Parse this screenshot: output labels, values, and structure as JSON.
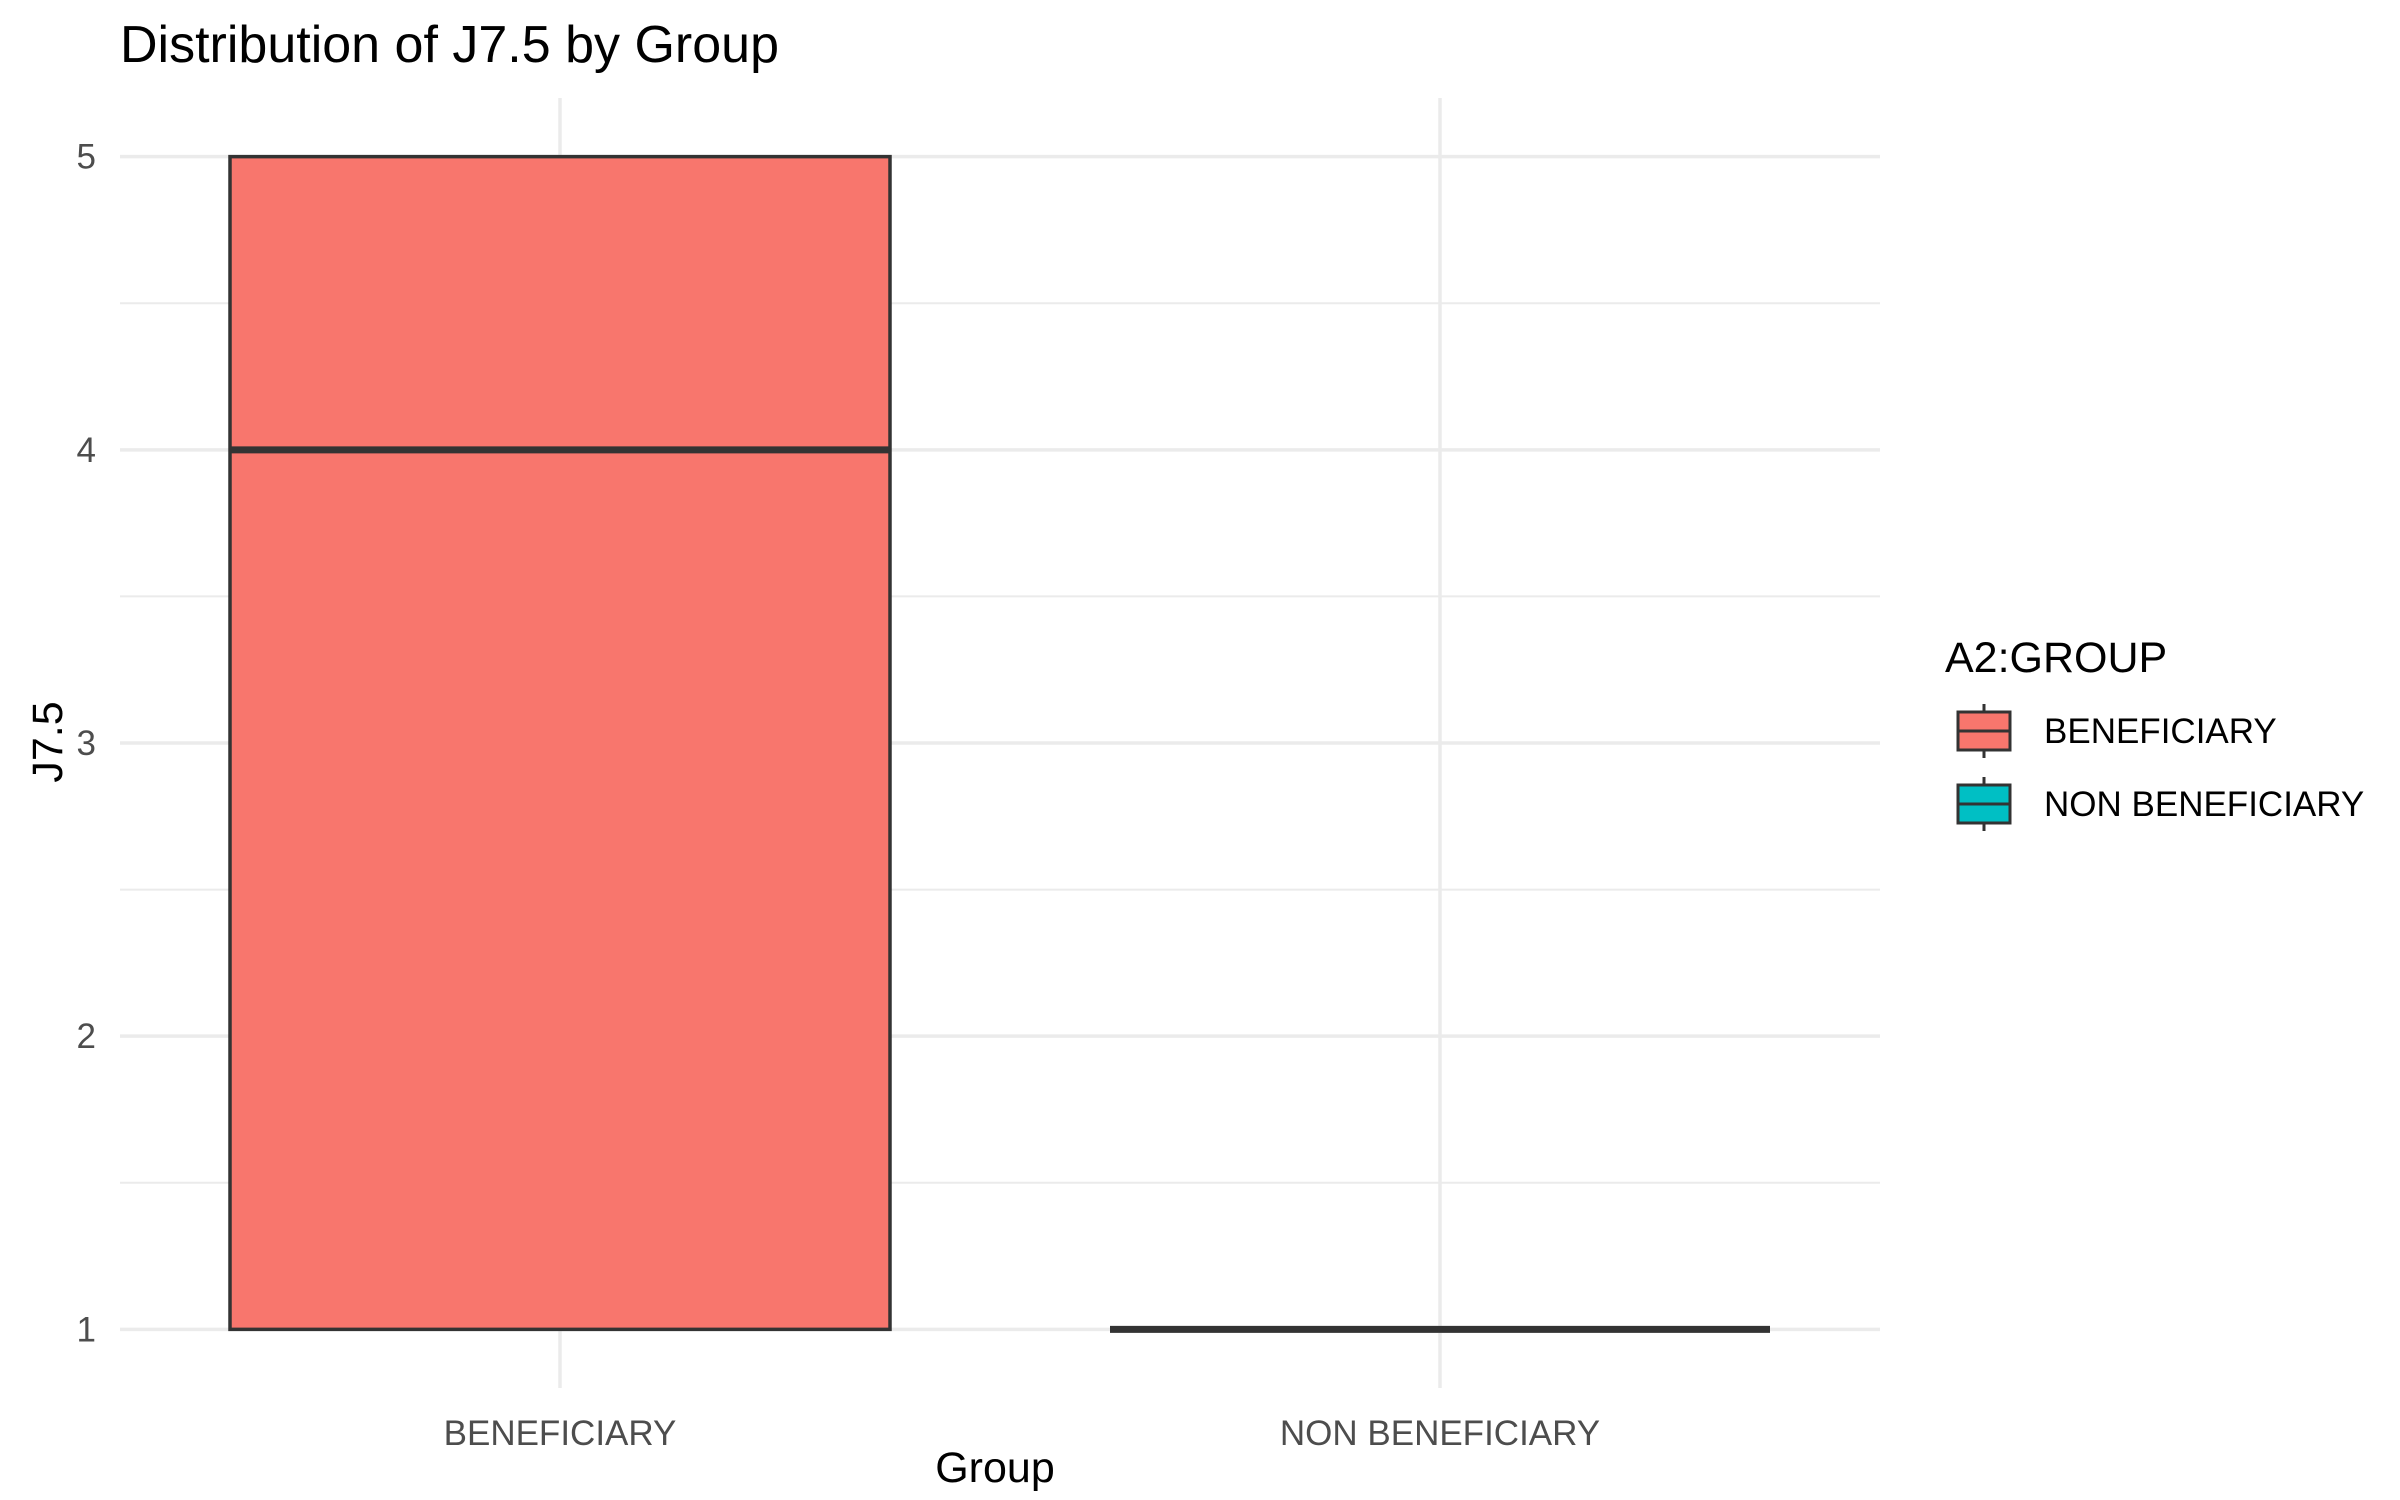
{
  "chart_data": {
    "type": "boxplot",
    "title": "Distribution of J7.5 by Group",
    "xlabel": "Group",
    "ylabel": "J7.5",
    "categories": [
      "BENEFICIARY",
      "NON BENEFICIARY"
    ],
    "boxes": [
      {
        "category": "BENEFICIARY",
        "q1": 1,
        "median": 4,
        "q3": 5,
        "min": 1,
        "max": 5,
        "color": "#F8766D"
      },
      {
        "category": "NON BENEFICIARY",
        "q1": 1,
        "median": 1,
        "q3": 1,
        "min": 1,
        "max": 1,
        "color": "#00BFC4"
      }
    ],
    "ylim": [
      0.8,
      5.2
    ],
    "yticks": [
      1,
      2,
      3,
      4,
      5
    ],
    "grid": true,
    "legend": {
      "title": "A2:GROUP",
      "position": "right",
      "items": [
        {
          "label": "BENEFICIARY",
          "color": "#F8766D"
        },
        {
          "label": "NON BENEFICIARY",
          "color": "#00BFC4"
        }
      ]
    }
  }
}
